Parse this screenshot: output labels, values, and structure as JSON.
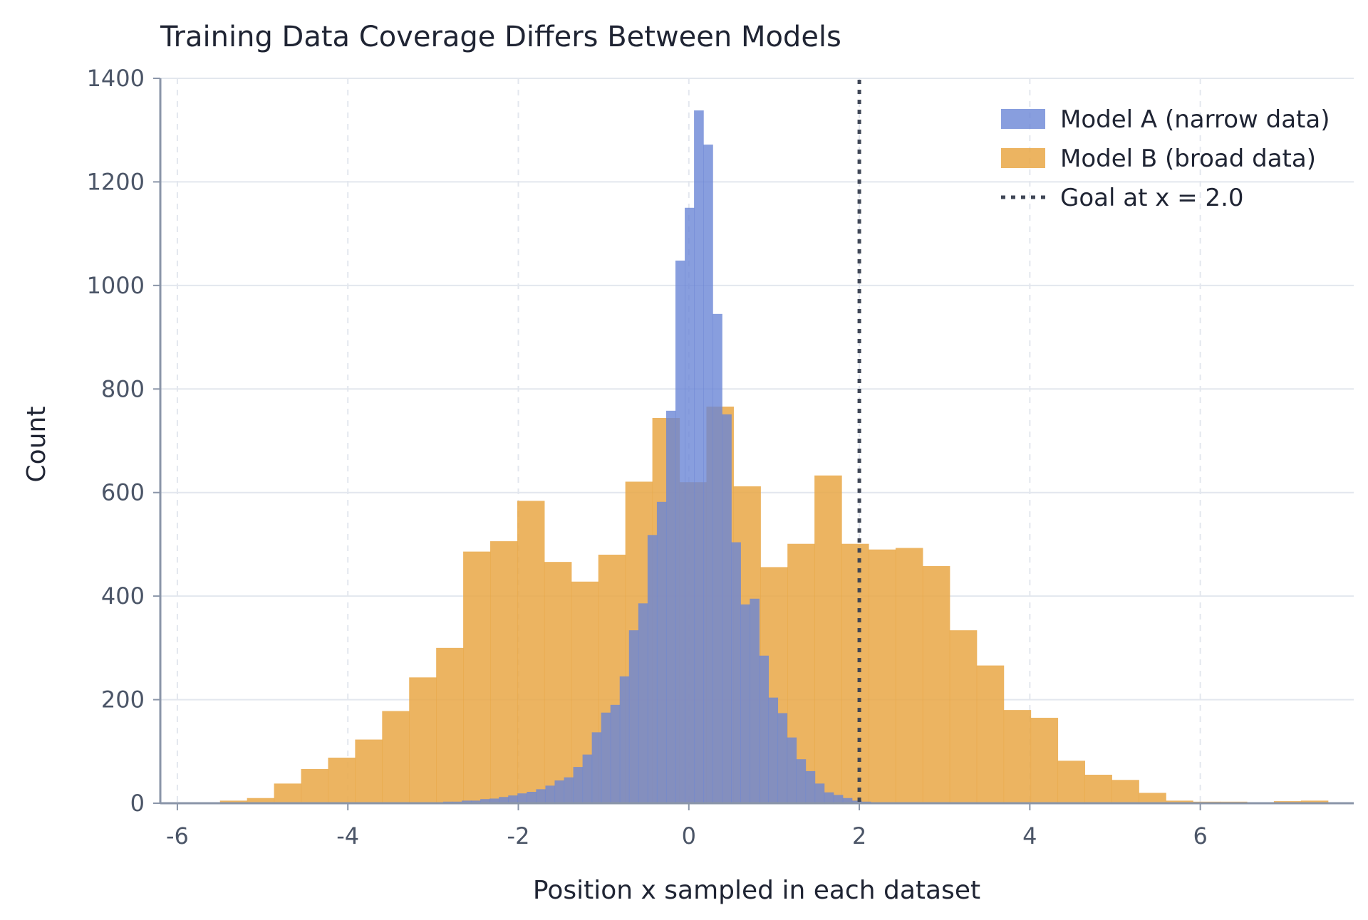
{
  "chart_data": {
    "type": "histogram",
    "title": "Training Data Coverage Differs Between Models",
    "xlabel": "Position x sampled in each dataset",
    "ylabel": "Count",
    "xlim": [
      -6.2,
      7.8
    ],
    "ylim": [
      0,
      1400
    ],
    "xticks": [
      -6,
      -4,
      -2,
      0,
      2,
      4,
      6
    ],
    "yticks": [
      0,
      200,
      400,
      600,
      800,
      1000,
      1200,
      1400
    ],
    "grid": true,
    "legend_position": "top-right",
    "series": [
      {
        "name": "Model B (broad data)",
        "color": "#e9a745",
        "opacity": 0.85,
        "bin_start": -5.5,
        "bin_width": 0.317,
        "counts": [
          5,
          10,
          38,
          66,
          88,
          123,
          178,
          243,
          300,
          486,
          506,
          584,
          466,
          428,
          480,
          621,
          744,
          620,
          766,
          612,
          456,
          501,
          633,
          501,
          490,
          493,
          458,
          334,
          266,
          180,
          165,
          82,
          55,
          45,
          20,
          5,
          3,
          3,
          2,
          4,
          5
        ]
      },
      {
        "name": "Model A (narrow data)",
        "color": "#6a86d6",
        "opacity": 0.8,
        "bin_start": -3.1,
        "bin_width": 0.109,
        "counts": [
          1,
          1,
          3,
          3,
          5,
          5,
          8,
          9,
          12,
          15,
          19,
          22,
          27,
          34,
          44,
          50,
          70,
          94,
          137,
          175,
          190,
          245,
          334,
          386,
          518,
          582,
          758,
          1048,
          1150,
          1338,
          1272,
          945,
          751,
          504,
          384,
          395,
          285,
          204,
          174,
          127,
          85,
          62,
          38,
          21,
          16,
          10,
          5,
          3,
          2,
          1
        ]
      }
    ],
    "reference_line": {
      "name": "Goal at x = 2.0",
      "x": 2.0,
      "color": "#3f4656",
      "style": "dotted"
    }
  }
}
